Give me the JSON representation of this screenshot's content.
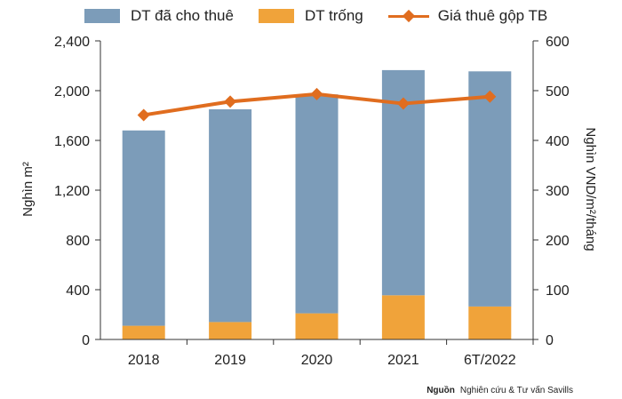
{
  "colors": {
    "leased": "#7c9cb9",
    "vacant": "#f0a33a",
    "price": "#e06d1f",
    "axis": "#333333",
    "grid": "#d9d9d9"
  },
  "legend": {
    "leased": "DT đã cho thuê",
    "vacant": "DT trống",
    "price": "Giá thuê gộp TB"
  },
  "source": {
    "label": "Nguồn",
    "text": "Nghiên cứu & Tư vấn Savills"
  },
  "chart_data": {
    "type": "bar",
    "stacked": true,
    "categories": [
      "2018",
      "2019",
      "2020",
      "2021",
      "6T/2022"
    ],
    "series": [
      {
        "name": "DT đã cho thuê",
        "axis": "left",
        "values": [
          1570,
          1710,
          1760,
          1810,
          1890
        ]
      },
      {
        "name": "DT trống",
        "axis": "left",
        "values": [
          110,
          140,
          210,
          355,
          265
        ]
      },
      {
        "name": "Giá thuê gộp TB",
        "axis": "right",
        "type": "line",
        "values": [
          451,
          478,
          493,
          474,
          488
        ]
      }
    ],
    "ylabel": "Nghìn m²",
    "y2label": "Nghìn VND/m²/tháng",
    "ylim": [
      0,
      2400
    ],
    "y2lim": [
      0,
      600
    ],
    "yticks": [
      "0",
      "400",
      "800",
      "1,200",
      "1,600",
      "2,000",
      "2,400"
    ],
    "y2ticks": [
      "0",
      "100",
      "200",
      "300",
      "400",
      "500",
      "600"
    ],
    "legend_position": "top"
  }
}
